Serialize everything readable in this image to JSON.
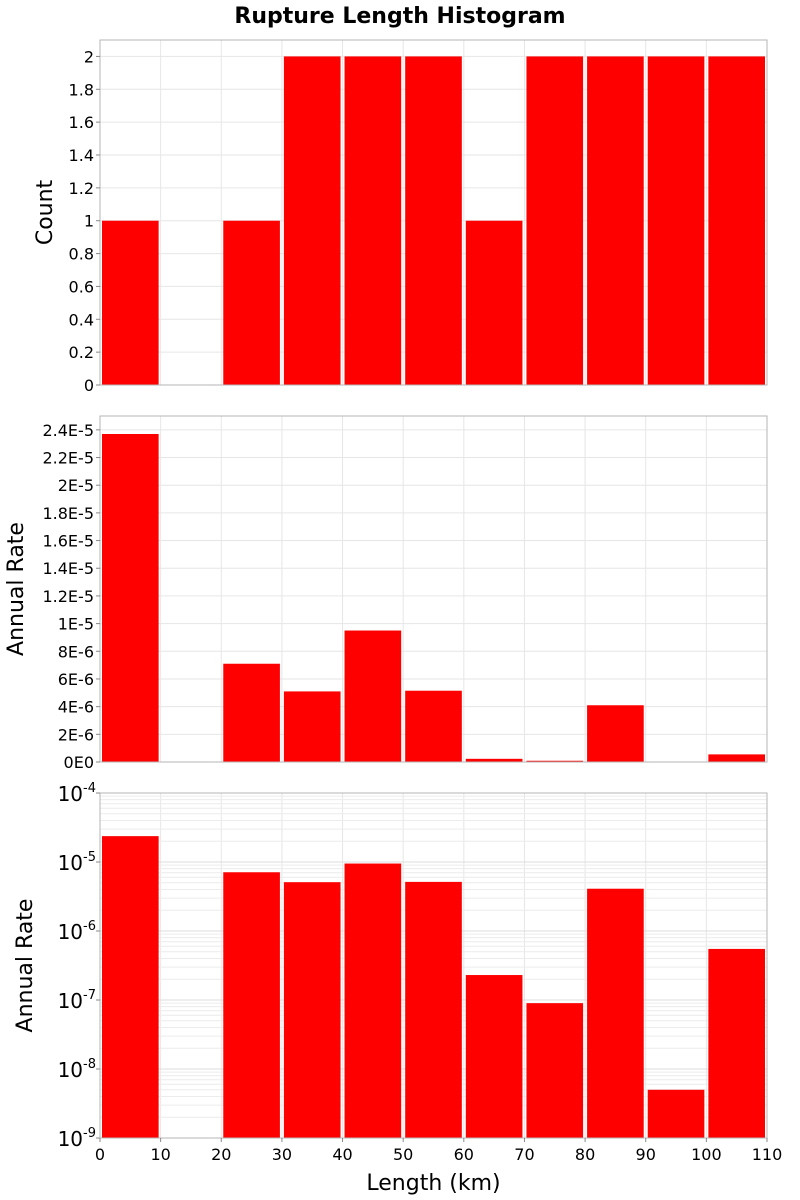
{
  "title": "Rupture Length Histogram",
  "chart_data": [
    {
      "type": "bar",
      "name": "count",
      "bins": [
        [
          0,
          10
        ],
        [
          10,
          20
        ],
        [
          20,
          30
        ],
        [
          30,
          40
        ],
        [
          40,
          50
        ],
        [
          50,
          60
        ],
        [
          60,
          70
        ],
        [
          70,
          80
        ],
        [
          80,
          90
        ],
        [
          90,
          100
        ],
        [
          100,
          110
        ]
      ],
      "values": [
        1,
        0,
        1,
        2,
        2,
        2,
        1,
        2,
        2,
        2,
        2
      ],
      "ylabel": "Count",
      "ylim": [
        0,
        2.1
      ],
      "yticks": [
        0,
        0.2,
        0.4,
        0.6,
        0.8,
        1,
        1.2,
        1.4,
        1.6,
        1.8,
        2
      ],
      "ytick_labels": [
        "0",
        "0.2",
        "0.4",
        "0.6",
        "0.8",
        "1",
        "1.2",
        "1.4",
        "1.6",
        "1.8",
        "2"
      ],
      "xlim": [
        0,
        110
      ],
      "color": "#ff0000",
      "grid": true
    },
    {
      "type": "bar",
      "name": "rate-linear",
      "bins": [
        [
          0,
          10
        ],
        [
          10,
          20
        ],
        [
          20,
          30
        ],
        [
          30,
          40
        ],
        [
          40,
          50
        ],
        [
          50,
          60
        ],
        [
          60,
          70
        ],
        [
          70,
          80
        ],
        [
          80,
          90
        ],
        [
          90,
          100
        ],
        [
          100,
          110
        ]
      ],
      "values": [
        2.37e-05,
        0,
        7.1e-06,
        5.1e-06,
        9.5e-06,
        5.15e-06,
        2.3e-07,
        9e-08,
        4.1e-06,
        5e-09,
        5.5e-07
      ],
      "ylabel": "Annual Rate",
      "ylim": [
        0,
        2.5e-05
      ],
      "yticks": [
        0,
        2e-06,
        4e-06,
        6e-06,
        8e-06,
        1e-05,
        1.2e-05,
        1.4e-05,
        1.6e-05,
        1.8e-05,
        2e-05,
        2.2e-05,
        2.4e-05
      ],
      "ytick_labels": [
        "0E0",
        "2E-6",
        "4E-6",
        "6E-6",
        "8E-6",
        "1E-5",
        "1.2E-5",
        "1.4E-5",
        "1.6E-5",
        "1.8E-5",
        "2E-5",
        "2.2E-5",
        "2.4E-5"
      ],
      "xlim": [
        0,
        110
      ],
      "color": "#ff0000",
      "grid": true
    },
    {
      "type": "bar",
      "name": "rate-log",
      "yscale": "log",
      "bins": [
        [
          0,
          10
        ],
        [
          10,
          20
        ],
        [
          20,
          30
        ],
        [
          30,
          40
        ],
        [
          40,
          50
        ],
        [
          50,
          60
        ],
        [
          60,
          70
        ],
        [
          70,
          80
        ],
        [
          80,
          90
        ],
        [
          90,
          100
        ],
        [
          100,
          110
        ]
      ],
      "values": [
        2.37e-05,
        0,
        7.1e-06,
        5.1e-06,
        9.5e-06,
        5.15e-06,
        2.3e-07,
        9e-08,
        4.1e-06,
        5e-09,
        5.5e-07
      ],
      "ylabel": "Annual Rate",
      "ylim_exp": [
        -9,
        -4
      ],
      "ytick_base": "10",
      "ytick_exponents": [
        "-9",
        "-8",
        "-7",
        "-6",
        "-5",
        "-4"
      ],
      "xlabel": "Length (km)",
      "xlim": [
        0,
        110
      ],
      "xticks": [
        0,
        10,
        20,
        30,
        40,
        50,
        60,
        70,
        80,
        90,
        100,
        110
      ],
      "xtick_labels": [
        "0",
        "10",
        "20",
        "30",
        "40",
        "50",
        "60",
        "70",
        "80",
        "90",
        "100",
        "110"
      ],
      "color": "#ff0000",
      "grid": true
    }
  ]
}
